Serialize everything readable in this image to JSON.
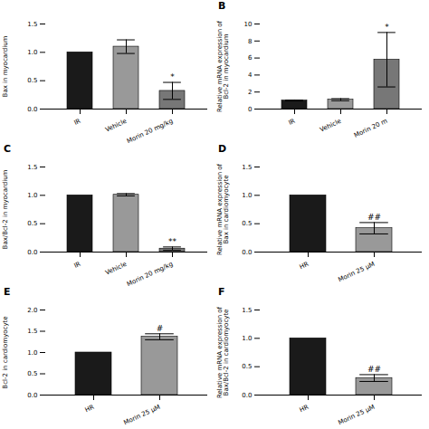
{
  "chart_data": [
    {
      "type": "bar",
      "categories": [
        "IR",
        "Vehicle",
        "Morin 20 mg/kg"
      ],
      "values": [
        1.0,
        1.1,
        0.32
      ],
      "errors": [
        0.0,
        0.12,
        0.15
      ],
      "colors": [
        "#1a1a1a",
        "#999999",
        "#777777"
      ],
      "ylabel": "Bax in myocardium",
      "ylim": [
        0,
        1.5
      ],
      "yticks": [
        {
          "value": 0.0,
          "label": "0.0"
        },
        {
          "value": 0.5,
          "label": "0.5"
        },
        {
          "value": 1.0,
          "label": "1.0"
        },
        {
          "value": 1.5,
          "label": "1.5"
        }
      ],
      "annotations": [
        {
          "category": "Morin 20 mg/kg",
          "text": "*"
        }
      ]
    },
    {
      "type": "bar",
      "title": "B",
      "categories": [
        "IR",
        "Vehicle",
        "Morin 20 m"
      ],
      "values": [
        1.0,
        1.1,
        5.8
      ],
      "errors": [
        0.05,
        0.12,
        3.2
      ],
      "colors": [
        "#1a1a1a",
        "#999999",
        "#777777"
      ],
      "ylabel": "Relative mRNA expression of\nBcl-2 in myocardium",
      "ylim": [
        0,
        10
      ],
      "yticks": [
        0,
        2,
        4,
        6,
        8,
        10
      ],
      "annotations": [
        {
          "category": "Morin 20 m",
          "text": "*"
        }
      ]
    },
    {
      "type": "bar",
      "title": "C",
      "categories": [
        "IR",
        "Vehicle",
        "Morin 20 mg/kg"
      ],
      "values": [
        1.0,
        1.01,
        0.06
      ],
      "errors": [
        0.0,
        0.02,
        0.03
      ],
      "colors": [
        "#1a1a1a",
        "#999999",
        "#777777"
      ],
      "ylabel": "Bax/Bcl-2 in myocardium",
      "ylim": [
        0,
        1.5
      ],
      "yticks": [
        {
          "value": 0.0,
          "label": "0.0"
        },
        {
          "value": 0.5,
          "label": "0.5"
        },
        {
          "value": 1.0,
          "label": "1.0"
        },
        {
          "value": 1.5,
          "label": "1.5"
        }
      ],
      "annotations": [
        {
          "category": "Morin 20 mg/kg",
          "text": "**"
        }
      ]
    },
    {
      "type": "bar",
      "title": "D",
      "categories": [
        "HR",
        "Morin 25 μM"
      ],
      "values": [
        1.0,
        0.42
      ],
      "errors": [
        0.0,
        0.1
      ],
      "colors": [
        "#1a1a1a",
        "#999999"
      ],
      "ylabel": "Relative mRNA expression of\nBax in cardiomyocyte",
      "ylim": [
        0,
        1.5
      ],
      "yticks": [
        {
          "value": 0.0,
          "label": "0.0"
        },
        {
          "value": 0.5,
          "label": "0.5"
        },
        {
          "value": 1.0,
          "label": "1.0"
        },
        {
          "value": 1.5,
          "label": "1.5"
        }
      ],
      "annotations": [
        {
          "category": "Morin 25 μM",
          "text": "##"
        }
      ]
    },
    {
      "type": "bar",
      "title": "E",
      "categories": [
        "HR",
        "Morin 25 μM"
      ],
      "values": [
        1.0,
        1.37
      ],
      "errors": [
        0.0,
        0.07
      ],
      "colors": [
        "#1a1a1a",
        "#999999"
      ],
      "ylabel": "Bcl-2 in cardiomyocyte",
      "ylim": [
        0,
        2.0
      ],
      "yticks": [
        {
          "value": 0.0,
          "label": "0.0"
        },
        {
          "value": 0.5,
          "label": "0.5"
        },
        {
          "value": 1.0,
          "label": "1.0"
        },
        {
          "value": 1.5,
          "label": "1.5"
        },
        {
          "value": 2.0,
          "label": "2.0"
        }
      ],
      "annotations": [
        {
          "category": "Morin 25 μM",
          "text": "#"
        }
      ]
    },
    {
      "type": "bar",
      "title": "F",
      "categories": [
        "HR",
        "Morin 25 μM"
      ],
      "values": [
        1.0,
        0.3
      ],
      "errors": [
        0.0,
        0.06
      ],
      "colors": [
        "#1a1a1a",
        "#999999"
      ],
      "ylabel": "Relative mRNA expression of\nBax/Bcl-2 in cardiomyocyte",
      "ylim": [
        0,
        1.5
      ],
      "yticks": [
        {
          "value": 0.0,
          "label": "0.0"
        },
        {
          "value": 0.5,
          "label": "0.5"
        },
        {
          "value": 1.0,
          "label": "1.0"
        },
        {
          "value": 1.5,
          "label": "1.5"
        }
      ],
      "annotations": [
        {
          "category": "Morin 25 μM",
          "text": "##"
        }
      ]
    }
  ]
}
